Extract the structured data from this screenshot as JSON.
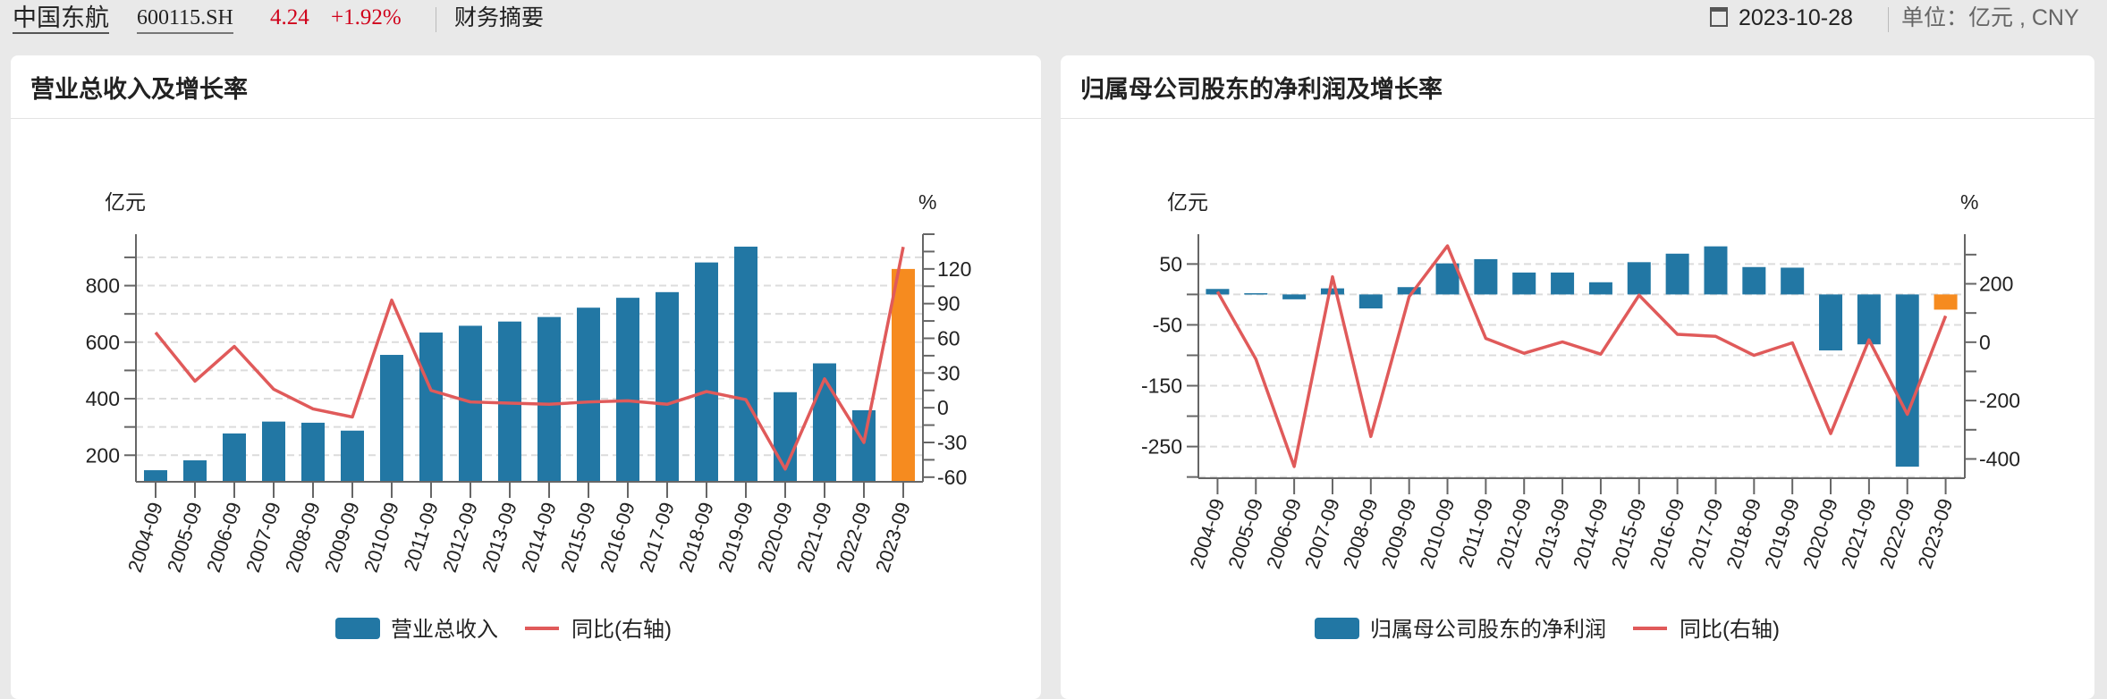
{
  "header": {
    "stock_name": "中国东航",
    "stock_code": "600115.SH",
    "price": "4.24",
    "change": "+1.92%",
    "section": "财务摘要",
    "date": "2023-10-28",
    "unit": "单位：亿元 , CNY",
    "icons": {
      "calendar": "calendar-icon"
    }
  },
  "colors": {
    "bar": "#2277a4",
    "bar_highlight": "#f68b1f",
    "line": "#e05a5a",
    "price_up": "#d0021b"
  },
  "chart_data": [
    {
      "type": "bar+line",
      "title": "营业总收入及增长率",
      "ylabel_left": "亿元",
      "ylabel_right": "%",
      "categories": [
        "2004-09",
        "2005-09",
        "2006-09",
        "2007-09",
        "2008-09",
        "2009-09",
        "2010-09",
        "2011-09",
        "2012-09",
        "2013-09",
        "2014-09",
        "2015-09",
        "2016-09",
        "2017-09",
        "2018-09",
        "2019-09",
        "2020-09",
        "2021-09",
        "2022-09",
        "2023-09"
      ],
      "series": [
        {
          "name": "营业总收入",
          "type": "bar",
          "axis": "left",
          "values": [
            147,
            182,
            277,
            319,
            315,
            287,
            555,
            634,
            658,
            673,
            689,
            722,
            757,
            777,
            882,
            938,
            423,
            525,
            359,
            859
          ]
        },
        {
          "name": "同比(右轴)",
          "type": "line",
          "axis": "right",
          "values": [
            65,
            23,
            53,
            16,
            -1,
            -8,
            93,
            15,
            5,
            4,
            3,
            5,
            6,
            3,
            14,
            7,
            -53,
            25,
            -30,
            139
          ]
        }
      ],
      "highlight_last": true,
      "ylim_left": [
        106,
        982
      ],
      "yticks_left": [
        200,
        400,
        600,
        800
      ],
      "ylim_right": [
        -64,
        150
      ],
      "yticks_right": [
        -60,
        -30,
        0,
        30,
        60,
        90,
        120
      ],
      "grid": true,
      "legend": "bottom"
    },
    {
      "type": "bar+line",
      "title": "归属母公司股东的净利润及增长率",
      "ylabel_left": "亿元",
      "ylabel_right": "%",
      "categories": [
        "2004-09",
        "2005-09",
        "2006-09",
        "2007-09",
        "2008-09",
        "2009-09",
        "2010-09",
        "2011-09",
        "2012-09",
        "2013-09",
        "2014-09",
        "2015-09",
        "2016-09",
        "2017-09",
        "2018-09",
        "2019-09",
        "2020-09",
        "2021-09",
        "2022-09",
        "2023-09"
      ],
      "series": [
        {
          "name": "归属母公司股东的净利润",
          "type": "bar",
          "axis": "left",
          "values": [
            9,
            2,
            -8,
            10,
            -23,
            12,
            51,
            58,
            36,
            36,
            20,
            53,
            67,
            79,
            45,
            44,
            -92,
            -82,
            -283,
            -25
          ]
        },
        {
          "name": "同比(右轴)",
          "type": "line",
          "axis": "right",
          "values": [
            173,
            -58,
            -426,
            224,
            -323,
            156,
            330,
            13,
            -38,
            1,
            -41,
            161,
            27,
            20,
            -45,
            -2,
            -313,
            8,
            -247,
            90
          ]
        }
      ],
      "highlight_last": true,
      "ylim_left": [
        -302,
        99
      ],
      "yticks_left": [
        -250,
        -150,
        -50,
        50
      ],
      "ylim_right": [
        -466,
        370
      ],
      "yticks_right": [
        -400,
        -200,
        0,
        200
      ],
      "grid": true,
      "legend": "bottom"
    }
  ]
}
